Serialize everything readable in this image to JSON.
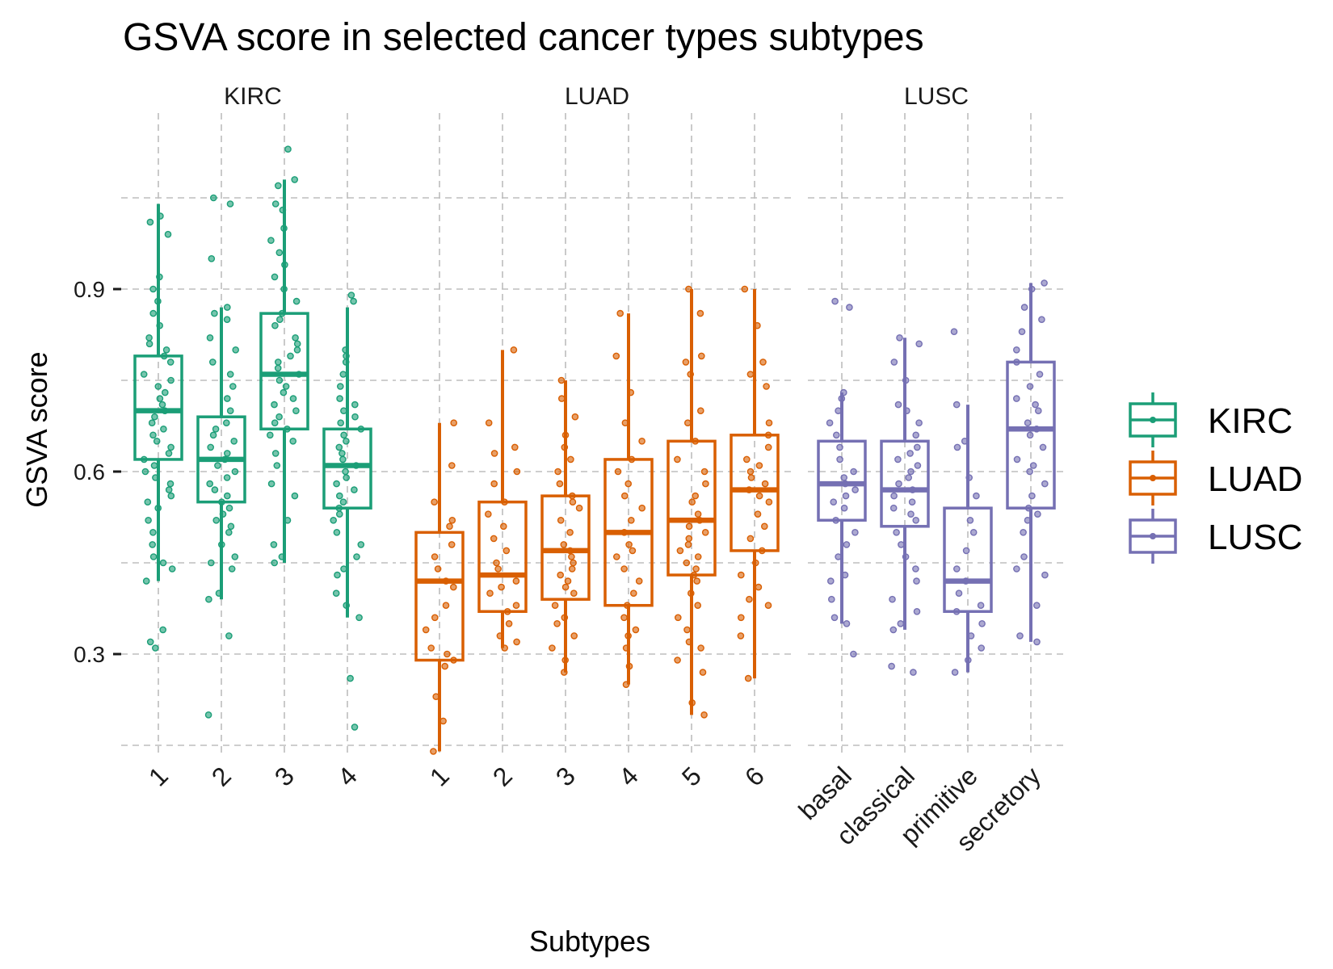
{
  "chart_data": {
    "type": "boxplot",
    "title": "GSVA score in selected cancer types subtypes",
    "xlabel": "Subtypes",
    "ylabel": "GSVA score",
    "ylim": [
      0.12,
      1.2
    ],
    "yticks": [
      0.3,
      0.6,
      0.9
    ],
    "grid": true,
    "legend_position": "right",
    "legend": [
      {
        "name": "KIRC",
        "color": "#1b9e77"
      },
      {
        "name": "LUAD",
        "color": "#d95f02"
      },
      {
        "name": "LUSC",
        "color": "#7570b3"
      }
    ],
    "facets": [
      {
        "name": "KIRC",
        "color": "#1b9e77",
        "categories": [
          "1",
          "2",
          "3",
          "4"
        ],
        "boxes": [
          {
            "min": 0.42,
            "q1": 0.62,
            "median": 0.7,
            "q3": 0.79,
            "max": 1.04
          },
          {
            "min": 0.39,
            "q1": 0.55,
            "median": 0.62,
            "q3": 0.69,
            "max": 0.87
          },
          {
            "min": 0.45,
            "q1": 0.67,
            "median": 0.76,
            "q3": 0.86,
            "max": 1.08
          },
          {
            "min": 0.36,
            "q1": 0.54,
            "median": 0.61,
            "q3": 0.67,
            "max": 0.87
          }
        ],
        "points": [
          [
            1.02,
            1.01,
            0.99,
            0.92,
            0.9,
            0.88,
            0.86,
            0.84,
            0.82,
            0.81,
            0.8,
            0.79,
            0.78,
            0.76,
            0.75,
            0.74,
            0.73,
            0.72,
            0.71,
            0.7,
            0.69,
            0.68,
            0.67,
            0.66,
            0.65,
            0.64,
            0.63,
            0.62,
            0.61,
            0.6,
            0.59,
            0.58,
            0.57,
            0.56,
            0.55,
            0.54,
            0.52,
            0.5,
            0.48,
            0.46,
            0.45,
            0.44,
            0.42,
            0.34,
            0.32,
            0.31
          ],
          [
            1.05,
            1.04,
            0.95,
            0.87,
            0.86,
            0.85,
            0.82,
            0.8,
            0.78,
            0.76,
            0.74,
            0.72,
            0.7,
            0.68,
            0.67,
            0.66,
            0.65,
            0.64,
            0.63,
            0.62,
            0.61,
            0.6,
            0.59,
            0.58,
            0.57,
            0.56,
            0.55,
            0.54,
            0.53,
            0.52,
            0.51,
            0.5,
            0.48,
            0.46,
            0.45,
            0.44,
            0.4,
            0.39,
            0.33,
            0.2
          ],
          [
            1.13,
            1.08,
            1.07,
            1.04,
            1.03,
            1.0,
            0.98,
            0.96,
            0.94,
            0.92,
            0.9,
            0.88,
            0.86,
            0.85,
            0.84,
            0.82,
            0.81,
            0.8,
            0.79,
            0.78,
            0.77,
            0.76,
            0.75,
            0.74,
            0.73,
            0.72,
            0.71,
            0.7,
            0.69,
            0.68,
            0.67,
            0.66,
            0.65,
            0.63,
            0.61,
            0.58,
            0.56,
            0.52,
            0.48,
            0.46,
            0.45
          ],
          [
            0.89,
            0.88,
            0.8,
            0.79,
            0.78,
            0.76,
            0.74,
            0.72,
            0.71,
            0.7,
            0.69,
            0.68,
            0.67,
            0.66,
            0.65,
            0.64,
            0.63,
            0.62,
            0.61,
            0.6,
            0.59,
            0.58,
            0.57,
            0.56,
            0.55,
            0.54,
            0.53,
            0.52,
            0.5,
            0.48,
            0.46,
            0.44,
            0.43,
            0.4,
            0.38,
            0.36,
            0.26,
            0.18
          ]
        ]
      },
      {
        "name": "LUAD",
        "color": "#d95f02",
        "categories": [
          "1",
          "2",
          "3",
          "4",
          "5",
          "6"
        ],
        "boxes": [
          {
            "min": 0.14,
            "q1": 0.29,
            "median": 0.42,
            "q3": 0.5,
            "max": 0.68
          },
          {
            "min": 0.31,
            "q1": 0.37,
            "median": 0.43,
            "q3": 0.55,
            "max": 0.8
          },
          {
            "min": 0.27,
            "q1": 0.39,
            "median": 0.47,
            "q3": 0.56,
            "max": 0.75
          },
          {
            "min": 0.25,
            "q1": 0.38,
            "median": 0.5,
            "q3": 0.62,
            "max": 0.86
          },
          {
            "min": 0.2,
            "q1": 0.43,
            "median": 0.52,
            "q3": 0.65,
            "max": 0.9
          },
          {
            "min": 0.26,
            "q1": 0.47,
            "median": 0.57,
            "q3": 0.66,
            "max": 0.9
          }
        ],
        "points": [
          [
            0.68,
            0.61,
            0.55,
            0.52,
            0.51,
            0.48,
            0.46,
            0.44,
            0.42,
            0.41,
            0.38,
            0.36,
            0.34,
            0.31,
            0.3,
            0.29,
            0.28,
            0.23,
            0.19,
            0.14
          ],
          [
            0.8,
            0.68,
            0.64,
            0.63,
            0.6,
            0.58,
            0.55,
            0.53,
            0.51,
            0.49,
            0.47,
            0.45,
            0.44,
            0.42,
            0.41,
            0.4,
            0.38,
            0.37,
            0.35,
            0.33,
            0.32,
            0.31
          ],
          [
            0.75,
            0.72,
            0.69,
            0.66,
            0.64,
            0.62,
            0.6,
            0.58,
            0.56,
            0.55,
            0.54,
            0.52,
            0.5,
            0.48,
            0.47,
            0.46,
            0.45,
            0.44,
            0.43,
            0.42,
            0.41,
            0.4,
            0.38,
            0.36,
            0.35,
            0.33,
            0.31,
            0.29,
            0.27
          ],
          [
            0.86,
            0.79,
            0.73,
            0.68,
            0.65,
            0.62,
            0.6,
            0.58,
            0.56,
            0.54,
            0.52,
            0.5,
            0.48,
            0.47,
            0.46,
            0.44,
            0.42,
            0.4,
            0.38,
            0.36,
            0.34,
            0.33,
            0.31,
            0.28,
            0.25
          ],
          [
            0.9,
            0.86,
            0.79,
            0.78,
            0.76,
            0.7,
            0.68,
            0.65,
            0.62,
            0.6,
            0.58,
            0.56,
            0.55,
            0.53,
            0.52,
            0.51,
            0.5,
            0.49,
            0.48,
            0.47,
            0.46,
            0.45,
            0.44,
            0.43,
            0.42,
            0.4,
            0.38,
            0.36,
            0.34,
            0.32,
            0.31,
            0.29,
            0.27,
            0.22,
            0.2
          ],
          [
            0.9,
            0.84,
            0.78,
            0.76,
            0.74,
            0.68,
            0.66,
            0.64,
            0.62,
            0.61,
            0.6,
            0.59,
            0.58,
            0.57,
            0.56,
            0.55,
            0.53,
            0.51,
            0.49,
            0.47,
            0.45,
            0.43,
            0.41,
            0.39,
            0.38,
            0.36,
            0.33,
            0.26
          ]
        ]
      },
      {
        "name": "LUSC",
        "color": "#7570b3",
        "categories": [
          "basal",
          "classical",
          "primitive",
          "secretory"
        ],
        "boxes": [
          {
            "min": 0.35,
            "q1": 0.52,
            "median": 0.58,
            "q3": 0.65,
            "max": 0.73
          },
          {
            "min": 0.34,
            "q1": 0.51,
            "median": 0.57,
            "q3": 0.65,
            "max": 0.82
          },
          {
            "min": 0.27,
            "q1": 0.37,
            "median": 0.42,
            "q3": 0.54,
            "max": 0.71
          },
          {
            "min": 0.32,
            "q1": 0.54,
            "median": 0.67,
            "q3": 0.78,
            "max": 0.91
          }
        ],
        "points": [
          [
            0.88,
            0.87,
            0.73,
            0.72,
            0.7,
            0.68,
            0.66,
            0.64,
            0.62,
            0.6,
            0.59,
            0.58,
            0.57,
            0.56,
            0.55,
            0.54,
            0.52,
            0.5,
            0.48,
            0.46,
            0.43,
            0.42,
            0.39,
            0.36,
            0.35,
            0.3
          ],
          [
            0.82,
            0.81,
            0.78,
            0.75,
            0.71,
            0.7,
            0.68,
            0.66,
            0.64,
            0.63,
            0.62,
            0.61,
            0.6,
            0.59,
            0.58,
            0.57,
            0.56,
            0.55,
            0.54,
            0.53,
            0.52,
            0.5,
            0.48,
            0.46,
            0.44,
            0.42,
            0.39,
            0.37,
            0.35,
            0.34,
            0.28,
            0.27
          ],
          [
            0.83,
            0.71,
            0.65,
            0.64,
            0.59,
            0.56,
            0.52,
            0.5,
            0.47,
            0.44,
            0.42,
            0.4,
            0.38,
            0.37,
            0.35,
            0.33,
            0.31,
            0.29,
            0.27
          ],
          [
            0.91,
            0.9,
            0.87,
            0.85,
            0.83,
            0.8,
            0.78,
            0.76,
            0.74,
            0.72,
            0.71,
            0.7,
            0.68,
            0.67,
            0.66,
            0.64,
            0.62,
            0.61,
            0.6,
            0.58,
            0.56,
            0.54,
            0.53,
            0.52,
            0.5,
            0.46,
            0.44,
            0.43,
            0.38,
            0.33,
            0.32
          ]
        ]
      }
    ]
  }
}
